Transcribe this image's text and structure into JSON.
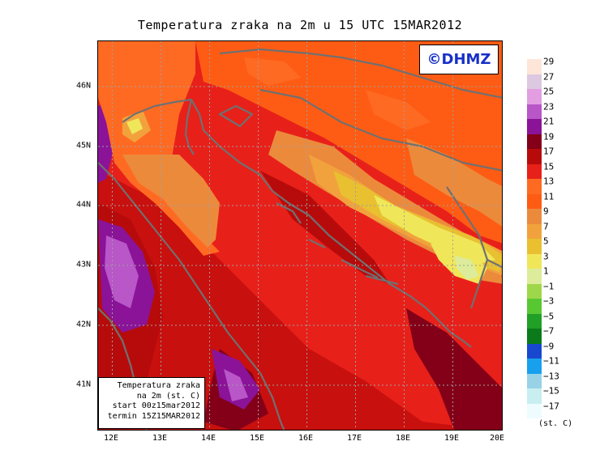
{
  "title": "Temperatura zraka na 2m u 15 UTC 15MAR2012",
  "copyright": "©DHMZ",
  "info_box": {
    "line1": "Temperatura zraka",
    "line2": "na 2m (st. C)",
    "line3": "start 00z15mar2012",
    "line4": "termin 15Z15MAR2012"
  },
  "axes": {
    "lat_labels": [
      "46N",
      "45N",
      "44N",
      "43N",
      "42N",
      "41N"
    ],
    "lon_labels": [
      "12E",
      "13E",
      "14E",
      "15E",
      "16E",
      "17E",
      "18E",
      "19E",
      "20E"
    ]
  },
  "legend": {
    "unit": "(st. C)",
    "labels": [
      "29",
      "27",
      "25",
      "23",
      "21",
      "19",
      "17",
      "15",
      "13",
      "11",
      "9",
      "7",
      "5",
      "3",
      "1",
      "−1",
      "−3",
      "−5",
      "−7",
      "−9",
      "−11",
      "−13",
      "−15",
      "−17"
    ],
    "colors": [
      "#fde6d8",
      "#dcc8e0",
      "#e29ee0",
      "#b956c8",
      "#8a1398",
      "#830018",
      "#b70b0b",
      "#e8201a",
      "#ff6a23",
      "#fe5c14",
      "#ec8a3c",
      "#f2a23c",
      "#e8c030",
      "#f0e65a",
      "#dcec9a",
      "#9ed84a",
      "#58c832",
      "#20a026",
      "#0a7a1a",
      "#1848d0",
      "#18a0ee",
      "#98d2e6",
      "#c8eef0",
      "#eefcff"
    ]
  }
}
